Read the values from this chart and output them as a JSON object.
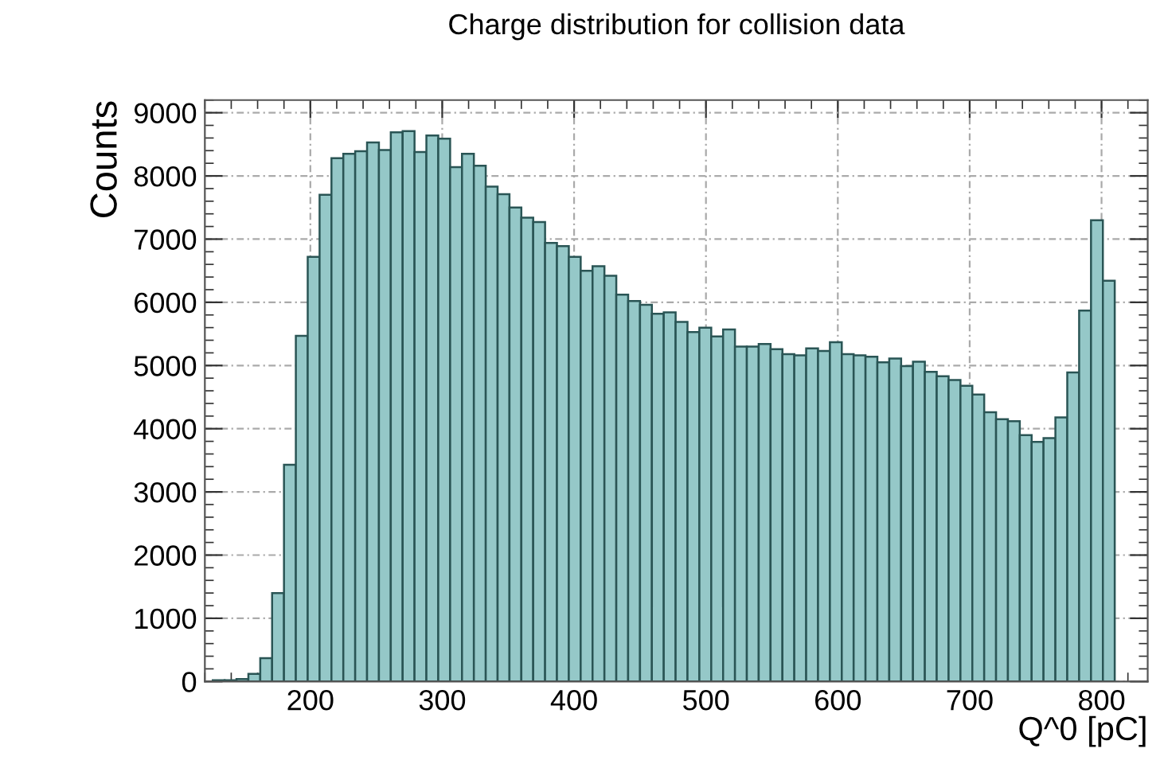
{
  "chart_data": {
    "type": "histogram",
    "title": "Charge distribution for collision data",
    "xlabel": "Q^0 [pC]",
    "ylabel": "Counts",
    "bins": [
      126,
      135,
      144,
      153,
      162,
      171,
      180,
      189,
      198,
      207,
      216,
      225,
      234,
      243,
      252,
      261,
      270,
      279,
      288,
      297,
      306,
      315,
      324,
      333,
      342,
      351,
      360,
      369,
      378,
      387,
      396,
      405,
      414,
      423,
      432,
      441,
      450,
      459,
      468,
      477,
      486,
      495,
      504,
      513,
      522,
      531,
      540,
      549,
      558,
      567,
      576,
      585,
      594,
      603,
      612,
      621,
      630,
      639,
      648,
      657,
      666,
      675,
      684,
      693,
      702,
      711,
      720,
      729,
      738,
      747,
      756,
      765,
      774,
      783,
      792,
      801,
      810
    ],
    "values": [
      20,
      20,
      40,
      120,
      370,
      1400,
      3430,
      5470,
      6720,
      7700,
      8280,
      8350,
      8390,
      8530,
      8410,
      8690,
      8710,
      8380,
      8640,
      8590,
      8140,
      8350,
      8160,
      7830,
      7710,
      7500,
      7340,
      7270,
      6940,
      6890,
      6720,
      6500,
      6570,
      6420,
      6120,
      6020,
      5960,
      5820,
      5840,
      5690,
      5530,
      5600,
      5460,
      5570,
      5300,
      5300,
      5340,
      5260,
      5180,
      5160,
      5270,
      5230,
      5370,
      5180,
      5160,
      5140,
      5050,
      5110,
      4990,
      5060,
      4900,
      4830,
      4770,
      4680,
      4540,
      4260,
      4150,
      4120,
      3900,
      3790,
      3850,
      4180,
      4890,
      5870,
      7300,
      6340
    ],
    "color": "#95c8c8",
    "xlim": [
      120,
      835
    ],
    "ylim": [
      0,
      9200
    ],
    "xticks": [
      200,
      300,
      400,
      500,
      600,
      700,
      800
    ],
    "yticks": [
      0,
      1000,
      2000,
      3000,
      4000,
      5000,
      6000,
      7000,
      8000,
      9000
    ],
    "grid": true,
    "legend": false
  }
}
